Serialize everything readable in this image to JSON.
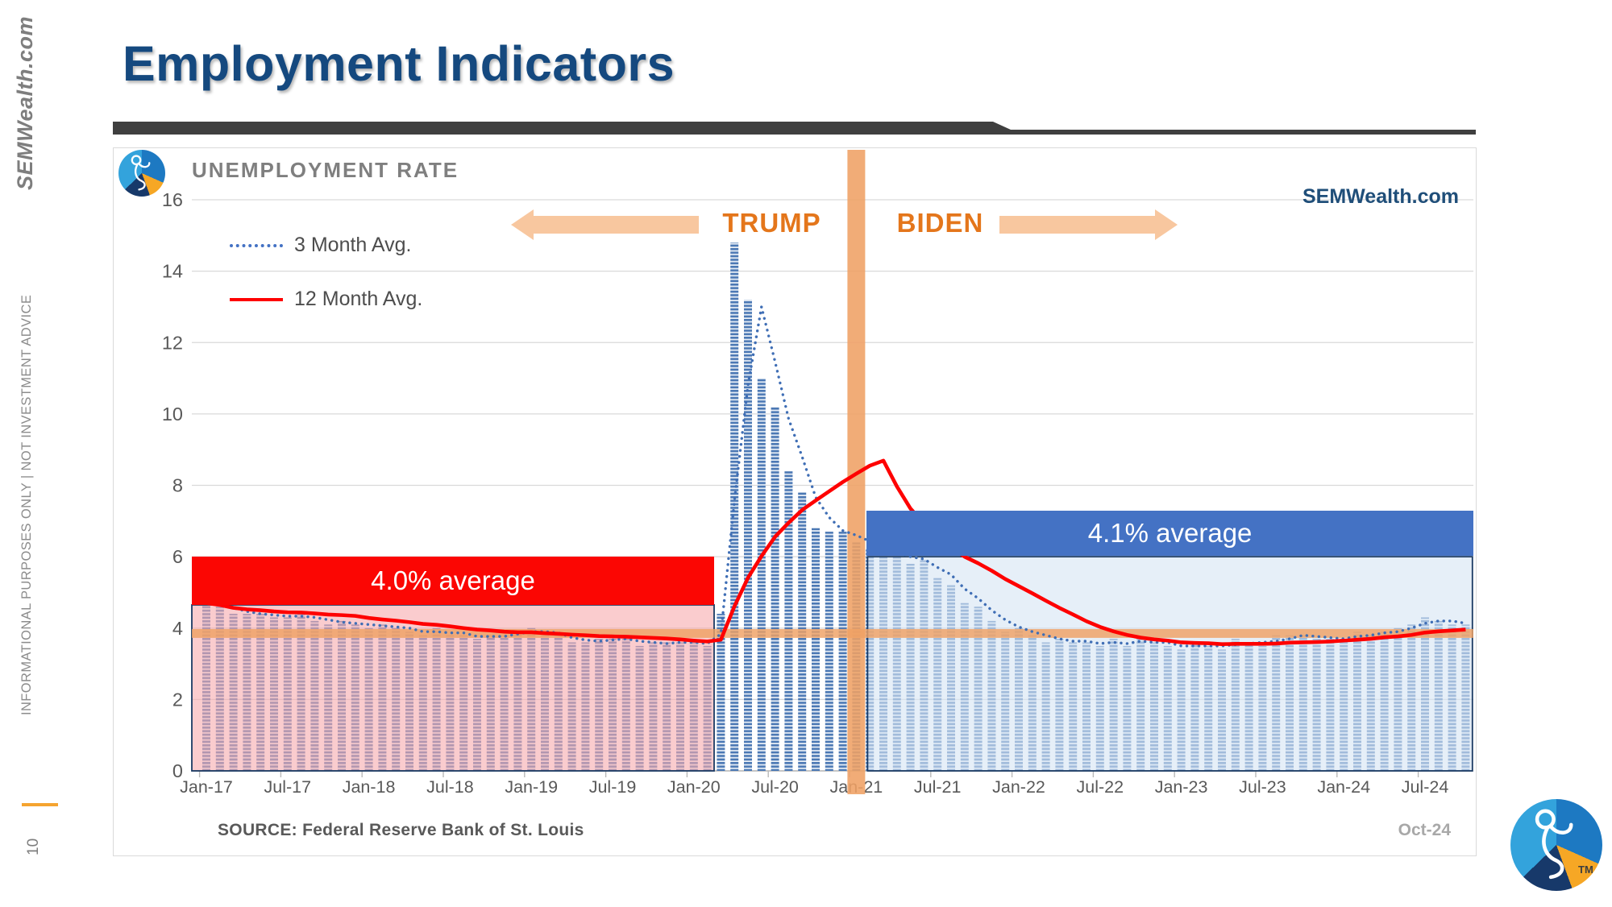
{
  "slide": {
    "title": "Employment Indicators",
    "page_number": "10",
    "sidebar_brand": "SEMWealth.com",
    "sidebar_disclaimer": "INFORMATIONAL PURPOSES ONLY | NOT INVESTMENT ADVICE"
  },
  "panel": {
    "heading": "UNEMPLOYMENT RATE",
    "watermark": "SEMWealth.com",
    "source_label": "SOURCE:  Federal Reserve Bank of St. Louis",
    "as_of": "Oct-24",
    "trademark": "TM"
  },
  "legend": [
    {
      "label": "3 Month Avg.",
      "style": "dotted",
      "color": "#4472C4"
    },
    {
      "label": "12 Month Avg.",
      "style": "solid",
      "color": "#FF0000"
    }
  ],
  "annotations": {
    "trump_label": "TRUMP",
    "biden_label": "BIDEN",
    "trump_avg_label": "4.0% average",
    "biden_avg_label": "4.1% average",
    "divider_month": "Jan-21"
  },
  "colors": {
    "title_blue": "#15497F",
    "bar_stripe_dark": "#4B78B4",
    "bar_stripe_light": "#E6EDF5",
    "red_line": "#FE0000",
    "dotted_line": "#3F6EB5",
    "orange_accent": "#EFA164",
    "trump_box_red": "#FB0603",
    "biden_box_blue": "#4472C4",
    "trump_shade_pink": "#F6AAAE",
    "biden_shade_blue": "#D6E5F3",
    "region_border_navy": "#1A3A63",
    "gridline_gray": "#D9D9D9",
    "axis_text_gray": "#595959",
    "era_orange_text": "#E4761B"
  },
  "chart_data": {
    "type": "bar",
    "title": "UNEMPLOYMENT RATE",
    "xlabel": "",
    "ylabel": "",
    "ylim": [
      0,
      16
    ],
    "y_ticks": [
      0,
      2,
      4,
      6,
      8,
      10,
      12,
      14,
      16
    ],
    "x_start": "Jan-17",
    "x_end": "Oct-24",
    "x_tick_labels": [
      "Jan-17",
      "Jul-17",
      "Jan-18",
      "Jul-18",
      "Jan-19",
      "Jul-19",
      "Jan-20",
      "Jul-20",
      "Jan-21",
      "Jul-21",
      "Jan-22",
      "Jul-22",
      "Jan-23",
      "Jul-23",
      "Jan-24",
      "Jul-24"
    ],
    "values": [
      4.7,
      4.6,
      4.4,
      4.4,
      4.4,
      4.3,
      4.3,
      4.4,
      4.2,
      4.1,
      4.2,
      4.1,
      4.0,
      4.1,
      4.0,
      3.9,
      3.8,
      4.0,
      3.8,
      3.8,
      3.7,
      3.8,
      3.8,
      3.9,
      4.0,
      3.8,
      3.8,
      3.6,
      3.6,
      3.7,
      3.7,
      3.7,
      3.5,
      3.6,
      3.6,
      3.6,
      3.6,
      3.5,
      4.4,
      14.8,
      13.2,
      11.0,
      10.2,
      8.4,
      7.8,
      6.8,
      6.7,
      6.7,
      6.4,
      6.2,
      6.1,
      6.1,
      5.8,
      5.9,
      5.4,
      5.2,
      4.7,
      4.6,
      4.2,
      3.9,
      4.0,
      3.8,
      3.6,
      3.7,
      3.6,
      3.6,
      3.5,
      3.7,
      3.5,
      3.7,
      3.6,
      3.5,
      3.4,
      3.6,
      3.5,
      3.4,
      3.7,
      3.6,
      3.5,
      3.8,
      3.8,
      3.8,
      3.7,
      3.7,
      3.7,
      3.9,
      3.8,
      3.9,
      4.0,
      4.1,
      4.3,
      4.2,
      4.1,
      4.1
    ],
    "series": [
      {
        "name": "3 Month Avg.",
        "derived": "trailing_mean_3",
        "style": "dotted",
        "color": "#3F6EB5"
      },
      {
        "name": "12 Month Avg.",
        "derived": "trailing_mean_12",
        "style": "solid",
        "color": "#FE0000"
      }
    ],
    "highlight_bands": [
      {
        "label": "4.0% average",
        "month_range": [
          "Jan-17",
          "Feb-20"
        ],
        "label_band_values": [
          4.65,
          6.0
        ],
        "shaded_region_values": [
          0,
          4.65
        ],
        "box_color": "#FB0603",
        "shade_color": "#F6AAAE"
      },
      {
        "label": "4.1% average",
        "month_range": [
          "Jan-21",
          "Oct-24"
        ],
        "label_band_values": [
          6.0,
          7.3
        ],
        "shaded_region_values": [
          0,
          6.0
        ],
        "box_color": "#4472C4",
        "shade_color": "#D6E5F3"
      }
    ],
    "divider_event": {
      "month": "Jan-21",
      "color": "#EFA164"
    },
    "reference_line_value": 3.85,
    "grid": true,
    "legend_position": "upper-left"
  }
}
